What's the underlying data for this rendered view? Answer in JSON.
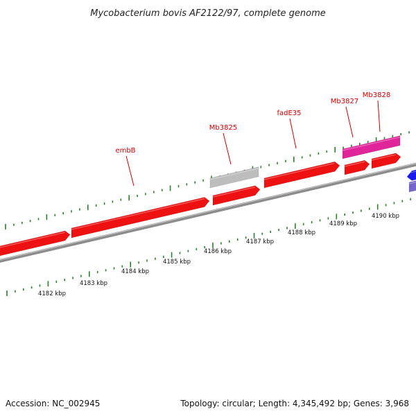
{
  "title": "Mycobacterium bovis AF2122/97, complete genome",
  "footer": {
    "accession": "Accession: NC_002945",
    "summary": "Topology: circular; Length: 4,345,492 bp; Genes: 3,968"
  },
  "colors": {
    "background": "#ffffff",
    "backbone": "#8c8c8c",
    "backbone_highlight": "#cfcfcf",
    "tick_mark": "#2f7d2f",
    "cds_red": "#ee1111",
    "cds_grey": "#bdbdbd",
    "cds_magenta": "#e0259b",
    "cds_blue": "#1a1aee",
    "cds_purple": "#7766cc",
    "label_text": "#cc0000",
    "leader_line": "#cc0000"
  },
  "kbp_ticks": [
    {
      "label": "4182 kbp"
    },
    {
      "label": "4183 kbp"
    },
    {
      "label": "4184 kbp"
    },
    {
      "label": "4185 kbp"
    },
    {
      "label": "4186 kbp"
    },
    {
      "label": "4187 kbp"
    },
    {
      "label": "4188 kbp"
    },
    {
      "label": "4189 kbp"
    },
    {
      "label": "4190 kbp"
    }
  ],
  "gene_labels": [
    {
      "name": "embB"
    },
    {
      "name": "Mb3825"
    },
    {
      "name": "fadE35"
    },
    {
      "name": "Mb3827"
    },
    {
      "name": "Mb3828"
    }
  ]
}
